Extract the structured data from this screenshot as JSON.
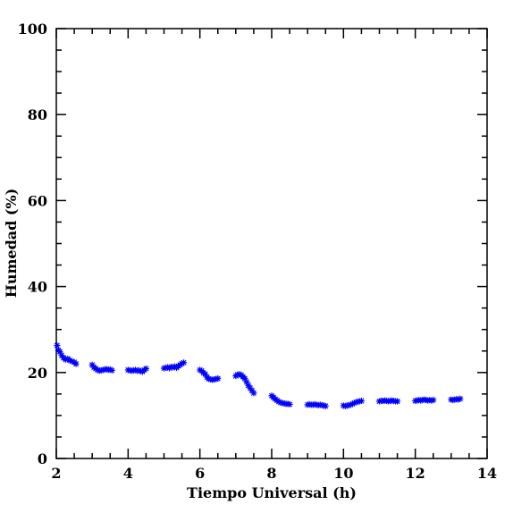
{
  "chart_data": {
    "type": "scatter",
    "xlabel": "Tiempo Universal (h)",
    "ylabel": "Humedad (%)",
    "xlim": [
      2,
      14
    ],
    "ylim": [
      0,
      100
    ],
    "xticks": [
      "2",
      "4",
      "6",
      "8",
      "10",
      "12",
      "14"
    ],
    "yticks": [
      "0",
      "20",
      "40",
      "60",
      "80",
      "100"
    ],
    "marker": "star",
    "color": "#0000ff",
    "grid": false,
    "series": [
      {
        "x": [
          2.02,
          2.06,
          2.1,
          2.15,
          2.2,
          2.26,
          2.32,
          2.38,
          2.44,
          2.5,
          2.55,
          3.0,
          3.05,
          3.1,
          3.15,
          3.2,
          3.25,
          3.3,
          3.35,
          3.4,
          3.45,
          3.5,
          3.55,
          4.0,
          4.05,
          4.1,
          4.15,
          4.2,
          4.25,
          4.3,
          4.35,
          4.4,
          4.45,
          4.5,
          5.0,
          5.05,
          5.1,
          5.15,
          5.2,
          5.25,
          5.3,
          5.35,
          5.4,
          5.45,
          5.5,
          5.55,
          6.0,
          6.05,
          6.1,
          6.15,
          6.2,
          6.25,
          6.3,
          6.35,
          6.4,
          6.45,
          6.5,
          7.0,
          7.05,
          7.1,
          7.15,
          7.2,
          7.25,
          7.3,
          7.35,
          7.4,
          7.45,
          7.5,
          8.0,
          8.05,
          8.1,
          8.15,
          8.2,
          8.25,
          8.3,
          8.35,
          8.4,
          8.45,
          8.5,
          9.0,
          9.05,
          9.1,
          9.15,
          9.2,
          9.25,
          9.3,
          9.35,
          9.4,
          9.45,
          9.5,
          10.0,
          10.05,
          10.1,
          10.15,
          10.2,
          10.25,
          10.3,
          10.35,
          10.4,
          10.45,
          10.5,
          11.0,
          11.05,
          11.1,
          11.15,
          11.2,
          11.25,
          11.3,
          11.35,
          11.4,
          11.45,
          11.5,
          12.0,
          12.05,
          12.1,
          12.15,
          12.2,
          12.25,
          12.3,
          12.35,
          12.4,
          12.45,
          12.5,
          13.0,
          13.05,
          13.1,
          13.15,
          13.2,
          13.25
        ],
        "y": [
          26.3,
          25.2,
          24.8,
          24.0,
          23.4,
          23.0,
          23.2,
          22.8,
          22.6,
          22.4,
          22.0,
          21.8,
          21.2,
          20.9,
          20.6,
          20.4,
          20.5,
          20.6,
          20.7,
          20.8,
          20.6,
          20.7,
          20.5,
          20.6,
          20.5,
          20.4,
          20.5,
          20.6,
          20.4,
          20.5,
          20.3,
          20.2,
          20.6,
          20.9,
          21.0,
          21.1,
          21.2,
          21.0,
          21.3,
          21.2,
          21.4,
          21.1,
          21.5,
          21.8,
          22.1,
          22.3,
          20.6,
          20.4,
          19.9,
          19.6,
          18.9,
          18.5,
          18.4,
          18.3,
          18.4,
          18.5,
          18.6,
          19.2,
          19.5,
          19.6,
          19.4,
          19.0,
          18.6,
          17.8,
          17.0,
          16.4,
          15.8,
          15.2,
          14.6,
          14.2,
          13.8,
          13.5,
          13.2,
          13.0,
          12.9,
          12.8,
          12.7,
          12.7,
          12.6,
          12.5,
          12.6,
          12.5,
          12.5,
          12.6,
          12.5,
          12.4,
          12.5,
          12.4,
          12.3,
          12.2,
          12.3,
          12.2,
          12.3,
          12.4,
          12.5,
          12.7,
          12.9,
          13.1,
          13.2,
          13.3,
          13.4,
          13.3,
          13.4,
          13.4,
          13.5,
          13.4,
          13.3,
          13.4,
          13.5,
          13.4,
          13.3,
          13.3,
          13.4,
          13.5,
          13.6,
          13.5,
          13.6,
          13.7,
          13.6,
          13.5,
          13.6,
          13.5,
          13.6,
          13.7,
          13.6,
          13.7,
          13.8,
          13.7,
          13.9
        ]
      }
    ]
  }
}
